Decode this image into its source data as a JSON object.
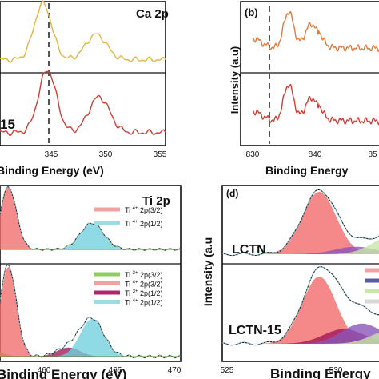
{
  "chart_data": [
    {
      "panel": "a",
      "type": "line",
      "title": "Ca 2p",
      "xlabel": "Binding Energy (eV)",
      "xlim": [
        340,
        355
      ],
      "xticks": [
        "345",
        "350",
        "355"
      ],
      "stack_label_partial": "15",
      "reference_line_x": 346.8,
      "series": [
        {
          "color": "#e4b53c",
          "stack": "top",
          "peaks": [
            {
              "x": 346.7,
              "height": 1.0
            },
            {
              "x": 350.3,
              "height": 0.45
            }
          ]
        },
        {
          "color": "#d23c34",
          "stack": "bottom",
          "peaks": [
            {
              "x": 347.0,
              "height": 1.0
            },
            {
              "x": 350.5,
              "height": 0.57
            }
          ]
        }
      ]
    },
    {
      "panel": "b",
      "type": "line",
      "label": "(b)",
      "xlabel": "Binding Energy",
      "ylabel": "Intensity (a.u)",
      "xlim": [
        830,
        850
      ],
      "xticks": [
        "830",
        "840",
        "85"
      ],
      "reference_line_x": 834.5,
      "series": [
        {
          "color": "#e07a3c",
          "stack": "top",
          "peaks": [
            {
              "x": 835.5,
              "height": 1.0
            },
            {
              "x": 839.0,
              "height": 0.75
            }
          ]
        },
        {
          "color": "#d23c34",
          "stack": "bottom",
          "peaks": [
            {
              "x": 835.5,
              "height": 1.0
            },
            {
              "x": 839.0,
              "height": 0.72
            }
          ]
        }
      ]
    },
    {
      "panel": "c",
      "type": "area",
      "title": "Ti 2p",
      "xlabel": "Binding Energy (eV)",
      "xlim": [
        455,
        470
      ],
      "xticks": [
        "460",
        "465",
        "470"
      ],
      "top_legend": [
        {
          "ion": "Ti",
          "charge": "4+",
          "orbital": "2p(3/2)",
          "color": "#f3a0a0"
        },
        {
          "ion": "Ti",
          "charge": "4+",
          "orbital": "2p(1/2)",
          "color": "#9fdbe3"
        }
      ],
      "bottom_legend": [
        {
          "ion": "Ti",
          "charge": "3+",
          "orbital": "2p(3/2)",
          "color": "#8fce5a"
        },
        {
          "ion": "Ti",
          "charge": "4+",
          "orbital": "2p(3/2)",
          "color": "#f3a0a0"
        },
        {
          "ion": "Ti",
          "charge": "3+",
          "orbital": "2p(1/2)",
          "color": "#b0266e"
        },
        {
          "ion": "Ti",
          "charge": "4+",
          "orbital": "2p(1/2)",
          "color": "#9fdbe3"
        }
      ],
      "top_components": [
        {
          "name": "Ti 4+ 2p(3/2)",
          "center": 458.3,
          "height": 1.0,
          "color": "#f26b6b"
        },
        {
          "name": "Ti 4+ 2p(1/2)",
          "center": 464.0,
          "height": 0.42,
          "color": "#6fcfdc"
        }
      ],
      "bottom_components": [
        {
          "name": "Ti 3+ 2p(3/2)",
          "center": 456.8,
          "height": 0.12,
          "color": "#7cc444"
        },
        {
          "name": "Ti 4+ 2p(3/2)",
          "center": 458.3,
          "height": 1.0,
          "color": "#f26b6b"
        },
        {
          "name": "Ti 3+ 2p(1/2)",
          "center": 462.4,
          "height": 0.1,
          "color": "#a2185e"
        },
        {
          "name": "Ti 4+ 2p(1/2)",
          "center": 464.0,
          "height": 0.42,
          "color": "#6fcfdc"
        }
      ]
    },
    {
      "panel": "d",
      "type": "area",
      "label": "(d)",
      "xlabel": "Binding Energy",
      "ylabel": "Intensity (a.u",
      "xlim": [
        525,
        535
      ],
      "xticks": [
        "525",
        "530"
      ],
      "top_sample": "LCTN",
      "bottom_sample": "LCTN-15",
      "top_components": [
        {
          "center": 529.3,
          "height": 1.0,
          "color": "#f26b6b"
        },
        {
          "center": 530.9,
          "height": 0.12,
          "color": "#8a55b8"
        },
        {
          "center": 532.6,
          "height": 0.3,
          "color": "#c7e6a8"
        }
      ],
      "bottom_components": [
        {
          "center": 529.3,
          "height": 1.0,
          "color": "#f26b6b"
        },
        {
          "center": 530.4,
          "height": 0.22,
          "color": "#a2185e"
        },
        {
          "center": 531.2,
          "height": 0.3,
          "color": "#8a55b8"
        },
        {
          "center": 532.6,
          "height": 0.22,
          "color": "#c7e6a8"
        }
      ],
      "legend_swatches": [
        "#f3a0a0",
        "#5a5aa0",
        "#c7e6a8",
        "#d8d8d8"
      ]
    }
  ]
}
